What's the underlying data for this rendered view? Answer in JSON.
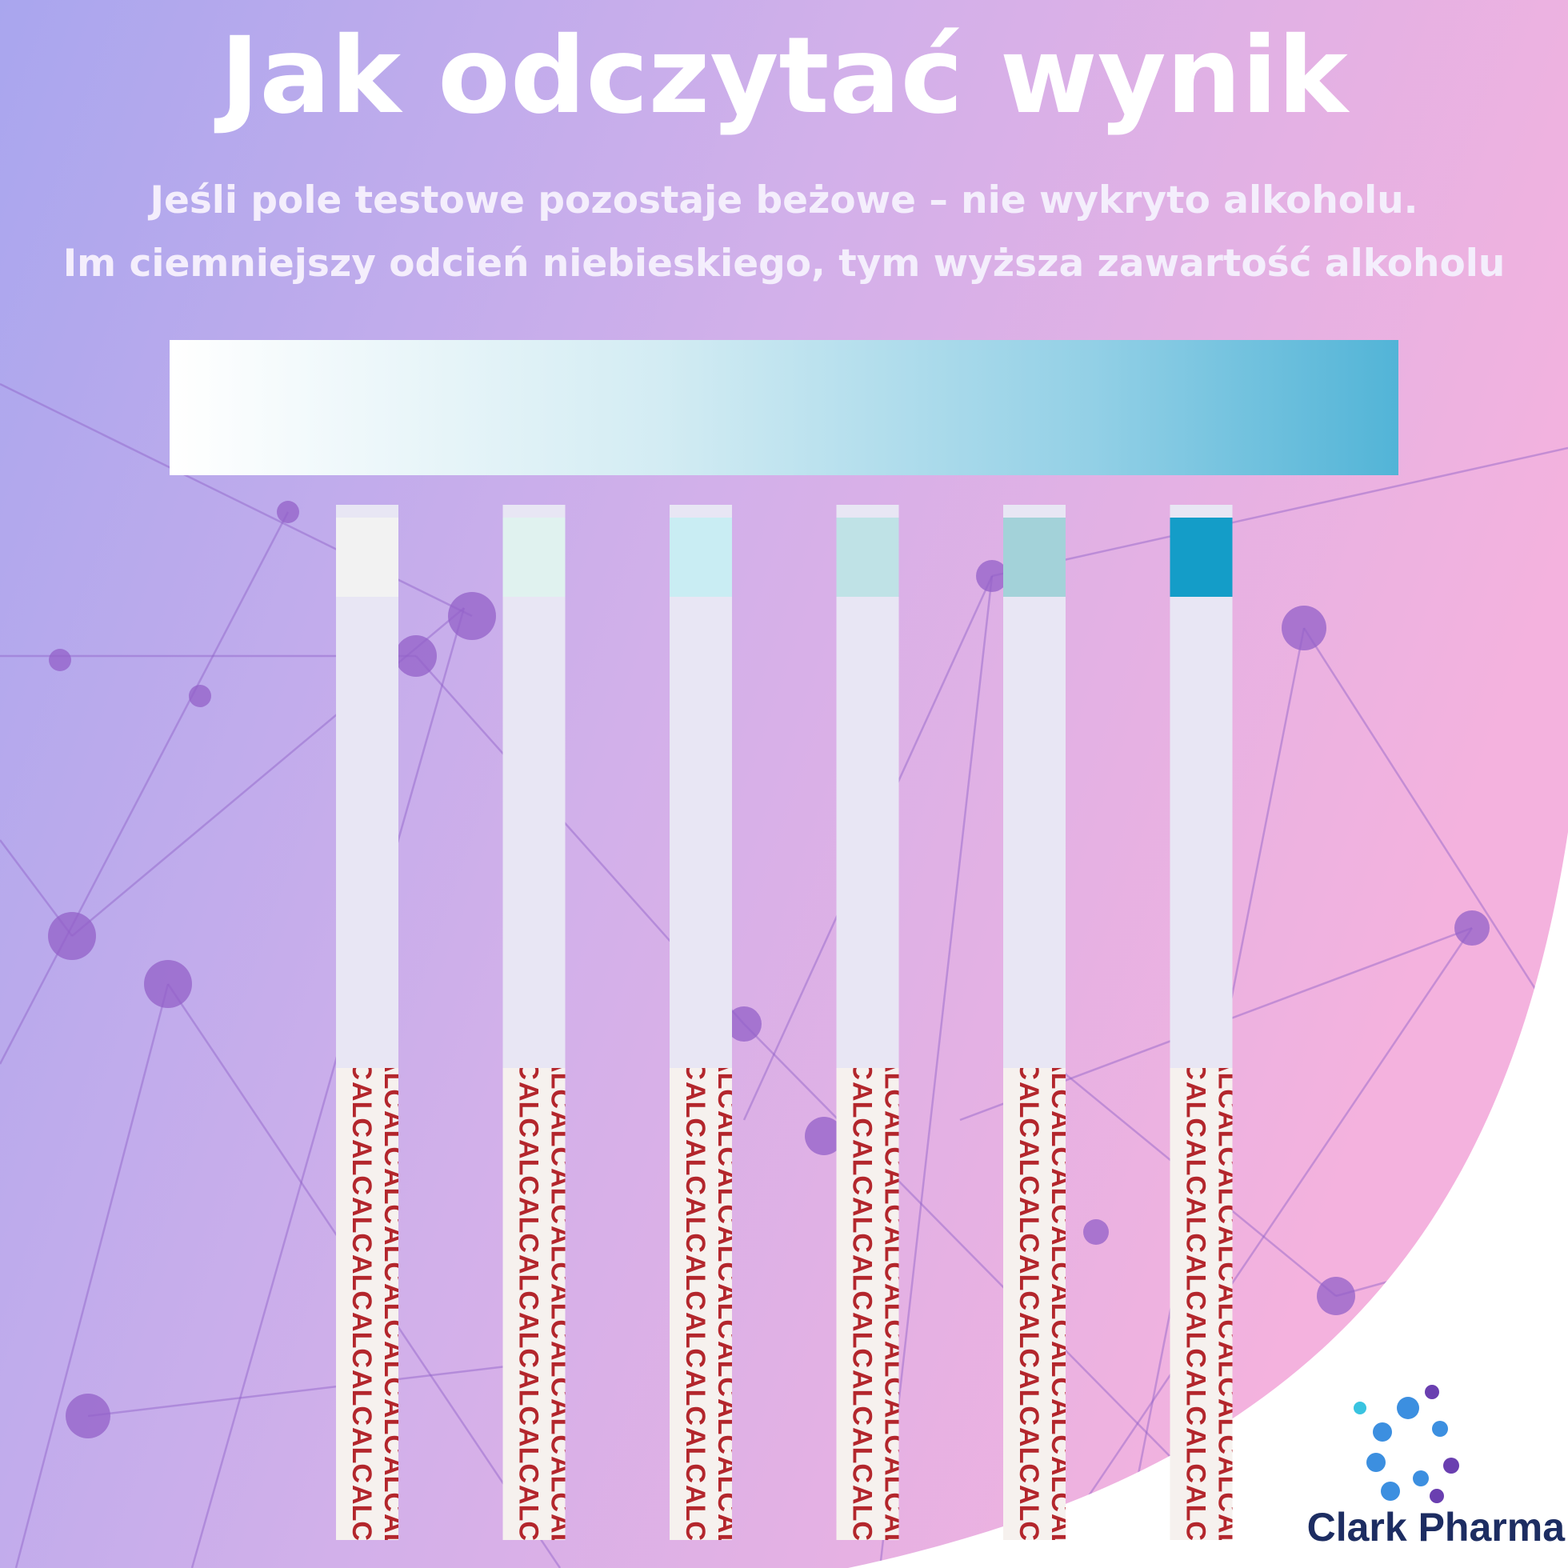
{
  "header": {
    "title": "Jak odczytać wynik",
    "subtitle_lines": [
      "Jeśli pole testowe pozostaje beżowe – nie wykryto alkoholu.",
      "Im ciemniejszy odcień niebieskiego, tym wyższa zawartość alkoholu"
    ]
  },
  "strip_label": "ALC",
  "brand": "Clark Pharma"
}
